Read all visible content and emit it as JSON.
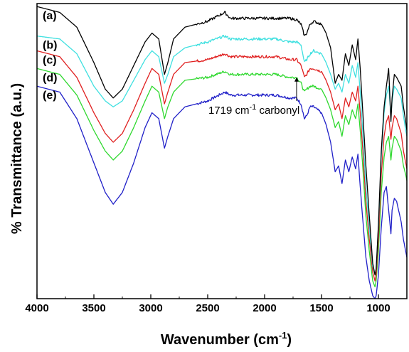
{
  "chart_data": {
    "type": "line",
    "xlabel": "Wavenumber (cm",
    "xlabel_sup": "-1",
    "xlabel_end": ")",
    "ylabel": "% Transmittance (a.u.)",
    "xlim": [
      4000,
      750
    ],
    "ylim": [
      0,
      100
    ],
    "x_reversed": true,
    "xticks": [
      4000,
      3500,
      3000,
      2500,
      2000,
      1500,
      1000
    ],
    "yticks_shown": false,
    "grid": false,
    "legend": "none",
    "annotation": {
      "text_pre": "1719 cm",
      "text_sup": "-1",
      "text_post": " carbonyl",
      "x": 1719,
      "arrow_y_from": 67,
      "arrow_y_to": 75
    },
    "series": [
      {
        "name": "(a)",
        "color": "#000000",
        "points": [
          [
            4000,
            99
          ],
          [
            3800,
            97
          ],
          [
            3650,
            92
          ],
          [
            3500,
            80
          ],
          [
            3400,
            71
          ],
          [
            3330,
            68
          ],
          [
            3250,
            71
          ],
          [
            3150,
            79
          ],
          [
            3050,
            87
          ],
          [
            2990,
            90
          ],
          [
            2930,
            88
          ],
          [
            2880,
            76
          ],
          [
            2850,
            80
          ],
          [
            2800,
            88
          ],
          [
            2700,
            92
          ],
          [
            2500,
            94
          ],
          [
            2350,
            97
          ],
          [
            2300,
            95
          ],
          [
            2100,
            95
          ],
          [
            1900,
            95
          ],
          [
            1780,
            95
          ],
          [
            1719,
            94.5
          ],
          [
            1680,
            93
          ],
          [
            1650,
            89
          ],
          [
            1630,
            90
          ],
          [
            1600,
            93
          ],
          [
            1570,
            94
          ],
          [
            1500,
            93
          ],
          [
            1460,
            90
          ],
          [
            1420,
            85
          ],
          [
            1380,
            73
          ],
          [
            1350,
            76
          ],
          [
            1320,
            74
          ],
          [
            1290,
            83
          ],
          [
            1260,
            79
          ],
          [
            1230,
            86
          ],
          [
            1200,
            81
          ],
          [
            1180,
            88
          ],
          [
            1160,
            78
          ],
          [
            1140,
            65
          ],
          [
            1110,
            45
          ],
          [
            1080,
            28
          ],
          [
            1050,
            12
          ],
          [
            1030,
            8
          ],
          [
            1020,
            10
          ],
          [
            1000,
            25
          ],
          [
            975,
            50
          ],
          [
            950,
            65
          ],
          [
            930,
            72
          ],
          [
            910,
            78
          ],
          [
            890,
            60
          ],
          [
            880,
            68
          ],
          [
            860,
            76
          ],
          [
            840,
            75
          ],
          [
            800,
            72
          ],
          [
            780,
            65
          ],
          [
            760,
            60
          ],
          [
            750,
            57
          ]
        ]
      },
      {
        "name": "(b)",
        "color": "#3fe0e0",
        "points": [
          [
            4000,
            89
          ],
          [
            3800,
            88
          ],
          [
            3650,
            83
          ],
          [
            3500,
            72
          ],
          [
            3400,
            67
          ],
          [
            3330,
            65
          ],
          [
            3250,
            67
          ],
          [
            3150,
            74
          ],
          [
            3050,
            81
          ],
          [
            2990,
            84
          ],
          [
            2930,
            82
          ],
          [
            2880,
            73
          ],
          [
            2850,
            76
          ],
          [
            2800,
            82
          ],
          [
            2700,
            85
          ],
          [
            2500,
            87
          ],
          [
            2350,
            89
          ],
          [
            2300,
            88
          ],
          [
            2100,
            88
          ],
          [
            1900,
            88
          ],
          [
            1780,
            87
          ],
          [
            1719,
            87
          ],
          [
            1680,
            86
          ],
          [
            1650,
            80
          ],
          [
            1630,
            81
          ],
          [
            1600,
            83
          ],
          [
            1570,
            84
          ],
          [
            1500,
            83
          ],
          [
            1460,
            80
          ],
          [
            1420,
            76
          ],
          [
            1380,
            71
          ],
          [
            1350,
            73
          ],
          [
            1320,
            70
          ],
          [
            1290,
            76
          ],
          [
            1260,
            73
          ],
          [
            1230,
            79
          ],
          [
            1200,
            75
          ],
          [
            1180,
            80
          ],
          [
            1160,
            70
          ],
          [
            1140,
            58
          ],
          [
            1110,
            38
          ],
          [
            1080,
            24
          ],
          [
            1050,
            11
          ],
          [
            1030,
            8
          ],
          [
            1020,
            10
          ],
          [
            1000,
            24
          ],
          [
            975,
            48
          ],
          [
            950,
            63
          ],
          [
            930,
            69
          ],
          [
            910,
            72
          ],
          [
            890,
            62
          ],
          [
            880,
            67
          ],
          [
            860,
            72
          ],
          [
            840,
            71
          ],
          [
            800,
            68
          ],
          [
            780,
            62
          ],
          [
            760,
            57
          ],
          [
            750,
            55
          ]
        ]
      },
      {
        "name": "(c)",
        "color": "#e02020",
        "points": [
          [
            4000,
            84
          ],
          [
            3800,
            82
          ],
          [
            3650,
            75
          ],
          [
            3500,
            63
          ],
          [
            3400,
            56
          ],
          [
            3330,
            53
          ],
          [
            3250,
            56
          ],
          [
            3150,
            64
          ],
          [
            3050,
            73
          ],
          [
            2990,
            78
          ],
          [
            2930,
            76
          ],
          [
            2880,
            66
          ],
          [
            2850,
            70
          ],
          [
            2800,
            76
          ],
          [
            2700,
            80
          ],
          [
            2500,
            81
          ],
          [
            2350,
            83
          ],
          [
            2300,
            82
          ],
          [
            2100,
            82
          ],
          [
            1900,
            82
          ],
          [
            1780,
            81
          ],
          [
            1719,
            81
          ],
          [
            1680,
            79
          ],
          [
            1650,
            75
          ],
          [
            1630,
            76
          ],
          [
            1600,
            78
          ],
          [
            1570,
            78
          ],
          [
            1500,
            77
          ],
          [
            1460,
            74
          ],
          [
            1420,
            70
          ],
          [
            1380,
            64
          ],
          [
            1350,
            66
          ],
          [
            1320,
            61
          ],
          [
            1290,
            68
          ],
          [
            1260,
            65
          ],
          [
            1230,
            70
          ],
          [
            1200,
            67
          ],
          [
            1180,
            72
          ],
          [
            1160,
            63
          ],
          [
            1140,
            52
          ],
          [
            1110,
            33
          ],
          [
            1080,
            20
          ],
          [
            1050,
            9
          ],
          [
            1030,
            6
          ],
          [
            1020,
            8
          ],
          [
            1000,
            20
          ],
          [
            975,
            42
          ],
          [
            950,
            55
          ],
          [
            930,
            60
          ],
          [
            910,
            62
          ],
          [
            890,
            54
          ],
          [
            880,
            58
          ],
          [
            860,
            62
          ],
          [
            840,
            61
          ],
          [
            800,
            56
          ],
          [
            780,
            50
          ],
          [
            760,
            46
          ],
          [
            750,
            44
          ]
        ]
      },
      {
        "name": "(d)",
        "color": "#2ed82e",
        "points": [
          [
            4000,
            78
          ],
          [
            3800,
            76
          ],
          [
            3650,
            69
          ],
          [
            3500,
            57
          ],
          [
            3400,
            50
          ],
          [
            3330,
            47
          ],
          [
            3250,
            50
          ],
          [
            3150,
            58
          ],
          [
            3050,
            67
          ],
          [
            2990,
            72
          ],
          [
            2930,
            70
          ],
          [
            2880,
            61
          ],
          [
            2850,
            65
          ],
          [
            2800,
            70
          ],
          [
            2700,
            74
          ],
          [
            2500,
            75
          ],
          [
            2350,
            77
          ],
          [
            2300,
            76
          ],
          [
            2100,
            76
          ],
          [
            1900,
            76
          ],
          [
            1780,
            75
          ],
          [
            1719,
            75
          ],
          [
            1680,
            73
          ],
          [
            1650,
            70
          ],
          [
            1630,
            71
          ],
          [
            1600,
            72
          ],
          [
            1570,
            72
          ],
          [
            1500,
            71
          ],
          [
            1460,
            68
          ],
          [
            1420,
            64
          ],
          [
            1380,
            58
          ],
          [
            1350,
            60
          ],
          [
            1320,
            55
          ],
          [
            1290,
            62
          ],
          [
            1260,
            59
          ],
          [
            1230,
            64
          ],
          [
            1200,
            61
          ],
          [
            1180,
            66
          ],
          [
            1160,
            57
          ],
          [
            1140,
            46
          ],
          [
            1110,
            28
          ],
          [
            1080,
            16
          ],
          [
            1050,
            6
          ],
          [
            1030,
            4
          ],
          [
            1020,
            6
          ],
          [
            1000,
            16
          ],
          [
            975,
            36
          ],
          [
            950,
            48
          ],
          [
            930,
            53
          ],
          [
            910,
            55
          ],
          [
            890,
            47
          ],
          [
            880,
            51
          ],
          [
            860,
            55
          ],
          [
            840,
            54
          ],
          [
            800,
            50
          ],
          [
            780,
            45
          ],
          [
            760,
            42
          ],
          [
            750,
            40
          ]
        ]
      },
      {
        "name": "(e)",
        "color": "#2020c8",
        "points": [
          [
            4000,
            72
          ],
          [
            3800,
            70
          ],
          [
            3650,
            61
          ],
          [
            3500,
            46
          ],
          [
            3400,
            36
          ],
          [
            3330,
            32
          ],
          [
            3250,
            36
          ],
          [
            3150,
            46
          ],
          [
            3050,
            58
          ],
          [
            2990,
            63
          ],
          [
            2930,
            61
          ],
          [
            2880,
            51
          ],
          [
            2850,
            55
          ],
          [
            2800,
            61
          ],
          [
            2700,
            65
          ],
          [
            2500,
            67
          ],
          [
            2350,
            70
          ],
          [
            2300,
            69
          ],
          [
            2100,
            69
          ],
          [
            1900,
            69
          ],
          [
            1780,
            68
          ],
          [
            1719,
            68
          ],
          [
            1680,
            66
          ],
          [
            1650,
            61
          ],
          [
            1630,
            62
          ],
          [
            1600,
            65
          ],
          [
            1570,
            65
          ],
          [
            1500,
            63
          ],
          [
            1460,
            59
          ],
          [
            1420,
            53
          ],
          [
            1380,
            43
          ],
          [
            1350,
            45
          ],
          [
            1320,
            39
          ],
          [
            1290,
            47
          ],
          [
            1260,
            43
          ],
          [
            1230,
            48
          ],
          [
            1200,
            44
          ],
          [
            1180,
            49
          ],
          [
            1160,
            38
          ],
          [
            1140,
            28
          ],
          [
            1110,
            14
          ],
          [
            1080,
            6
          ],
          [
            1050,
            1
          ],
          [
            1030,
            0
          ],
          [
            1020,
            1
          ],
          [
            1000,
            8
          ],
          [
            975,
            24
          ],
          [
            950,
            36
          ],
          [
            930,
            38
          ],
          [
            910,
            30
          ],
          [
            890,
            22
          ],
          [
            880,
            30
          ],
          [
            860,
            34
          ],
          [
            840,
            33
          ],
          [
            800,
            26
          ],
          [
            780,
            20
          ],
          [
            760,
            16
          ],
          [
            750,
            14
          ]
        ]
      }
    ]
  }
}
